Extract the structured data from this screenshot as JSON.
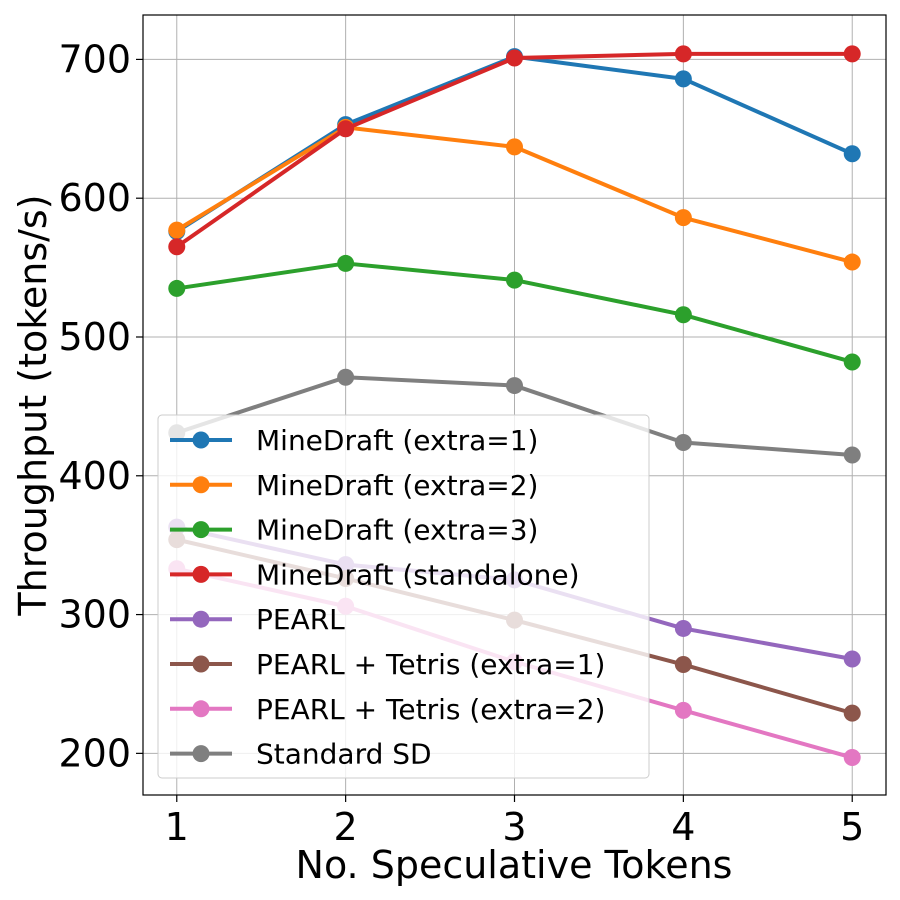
{
  "chart_data": {
    "type": "line",
    "title": "",
    "xlabel": "No. Speculative Tokens",
    "ylabel": "Throughput (tokens/s)",
    "x": [
      1,
      2,
      3,
      4,
      5
    ],
    "x_ticks": [
      "1",
      "2",
      "3",
      "4",
      "5"
    ],
    "xlim": [
      0.8,
      5.2
    ],
    "y_ticks": [
      "200",
      "300",
      "400",
      "500",
      "600",
      "700"
    ],
    "y_tick_values": [
      200,
      300,
      400,
      500,
      600,
      700
    ],
    "ylim": [
      170,
      732
    ],
    "grid": true,
    "legend_placement": "lower-left",
    "series": [
      {
        "name": "MineDraft (extra=1)",
        "color": "#1f77b4",
        "values": [
          576,
          653,
          702,
          686,
          632
        ]
      },
      {
        "name": "MineDraft (extra=2)",
        "color": "#ff7f0e",
        "values": [
          577,
          651,
          637,
          586,
          554
        ]
      },
      {
        "name": "MineDraft (extra=3)",
        "color": "#2ca02c",
        "values": [
          535,
          553,
          541,
          516,
          482
        ]
      },
      {
        "name": "MineDraft (standalone)",
        "color": "#d62728",
        "values": [
          565,
          650,
          701,
          704,
          704
        ]
      },
      {
        "name": "PEARL",
        "color": "#9467bd",
        "values": [
          363,
          336,
          325,
          290,
          268
        ]
      },
      {
        "name": "PEARL + Tetris (extra=1)",
        "color": "#8c564b",
        "values": [
          354,
          326,
          296,
          264,
          229
        ]
      },
      {
        "name": "PEARL + Tetris (extra=2)",
        "color": "#e377c2",
        "values": [
          333,
          306,
          266,
          231,
          197
        ]
      },
      {
        "name": "Standard SD",
        "color": "#7f7f7f",
        "values": [
          431,
          471,
          465,
          424,
          415
        ]
      }
    ]
  }
}
